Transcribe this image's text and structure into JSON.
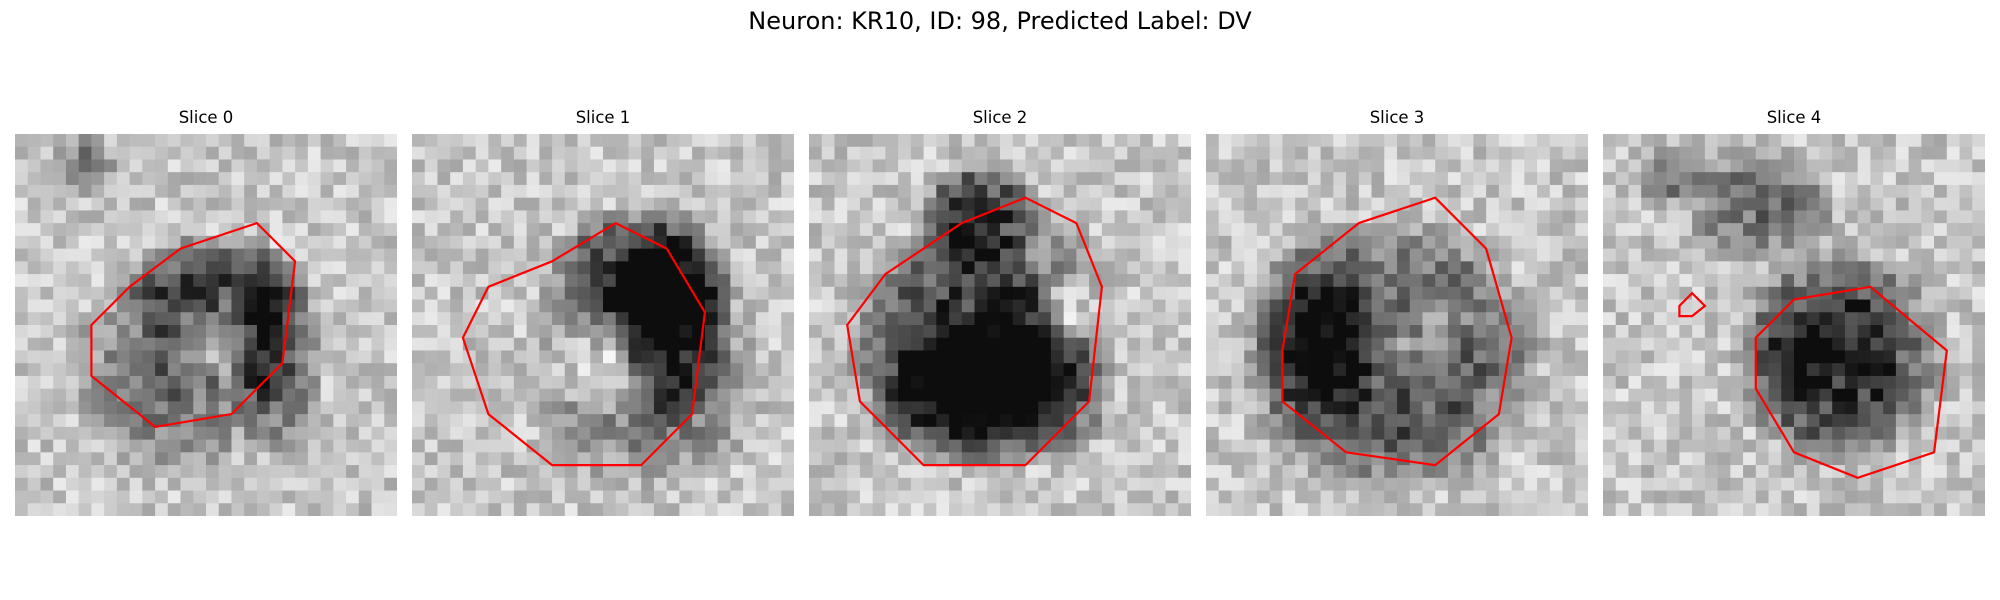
{
  "figure": {
    "title": "Neuron: KR10, ID: 98, Predicted Label: DV"
  },
  "contour_color": "#ff0000",
  "panels": [
    {
      "title": "Slice 0",
      "content": "grayscale microscopy slice with red cell contour"
    },
    {
      "title": "Slice 1",
      "content": "grayscale microscopy slice with red cell contour"
    },
    {
      "title": "Slice 2",
      "content": "grayscale microscopy slice with red cell contour"
    },
    {
      "title": "Slice 3",
      "content": "grayscale microscopy slice with red cell contour"
    },
    {
      "title": "Slice 4",
      "content": "grayscale microscopy slice with red cell contour"
    }
  ]
}
